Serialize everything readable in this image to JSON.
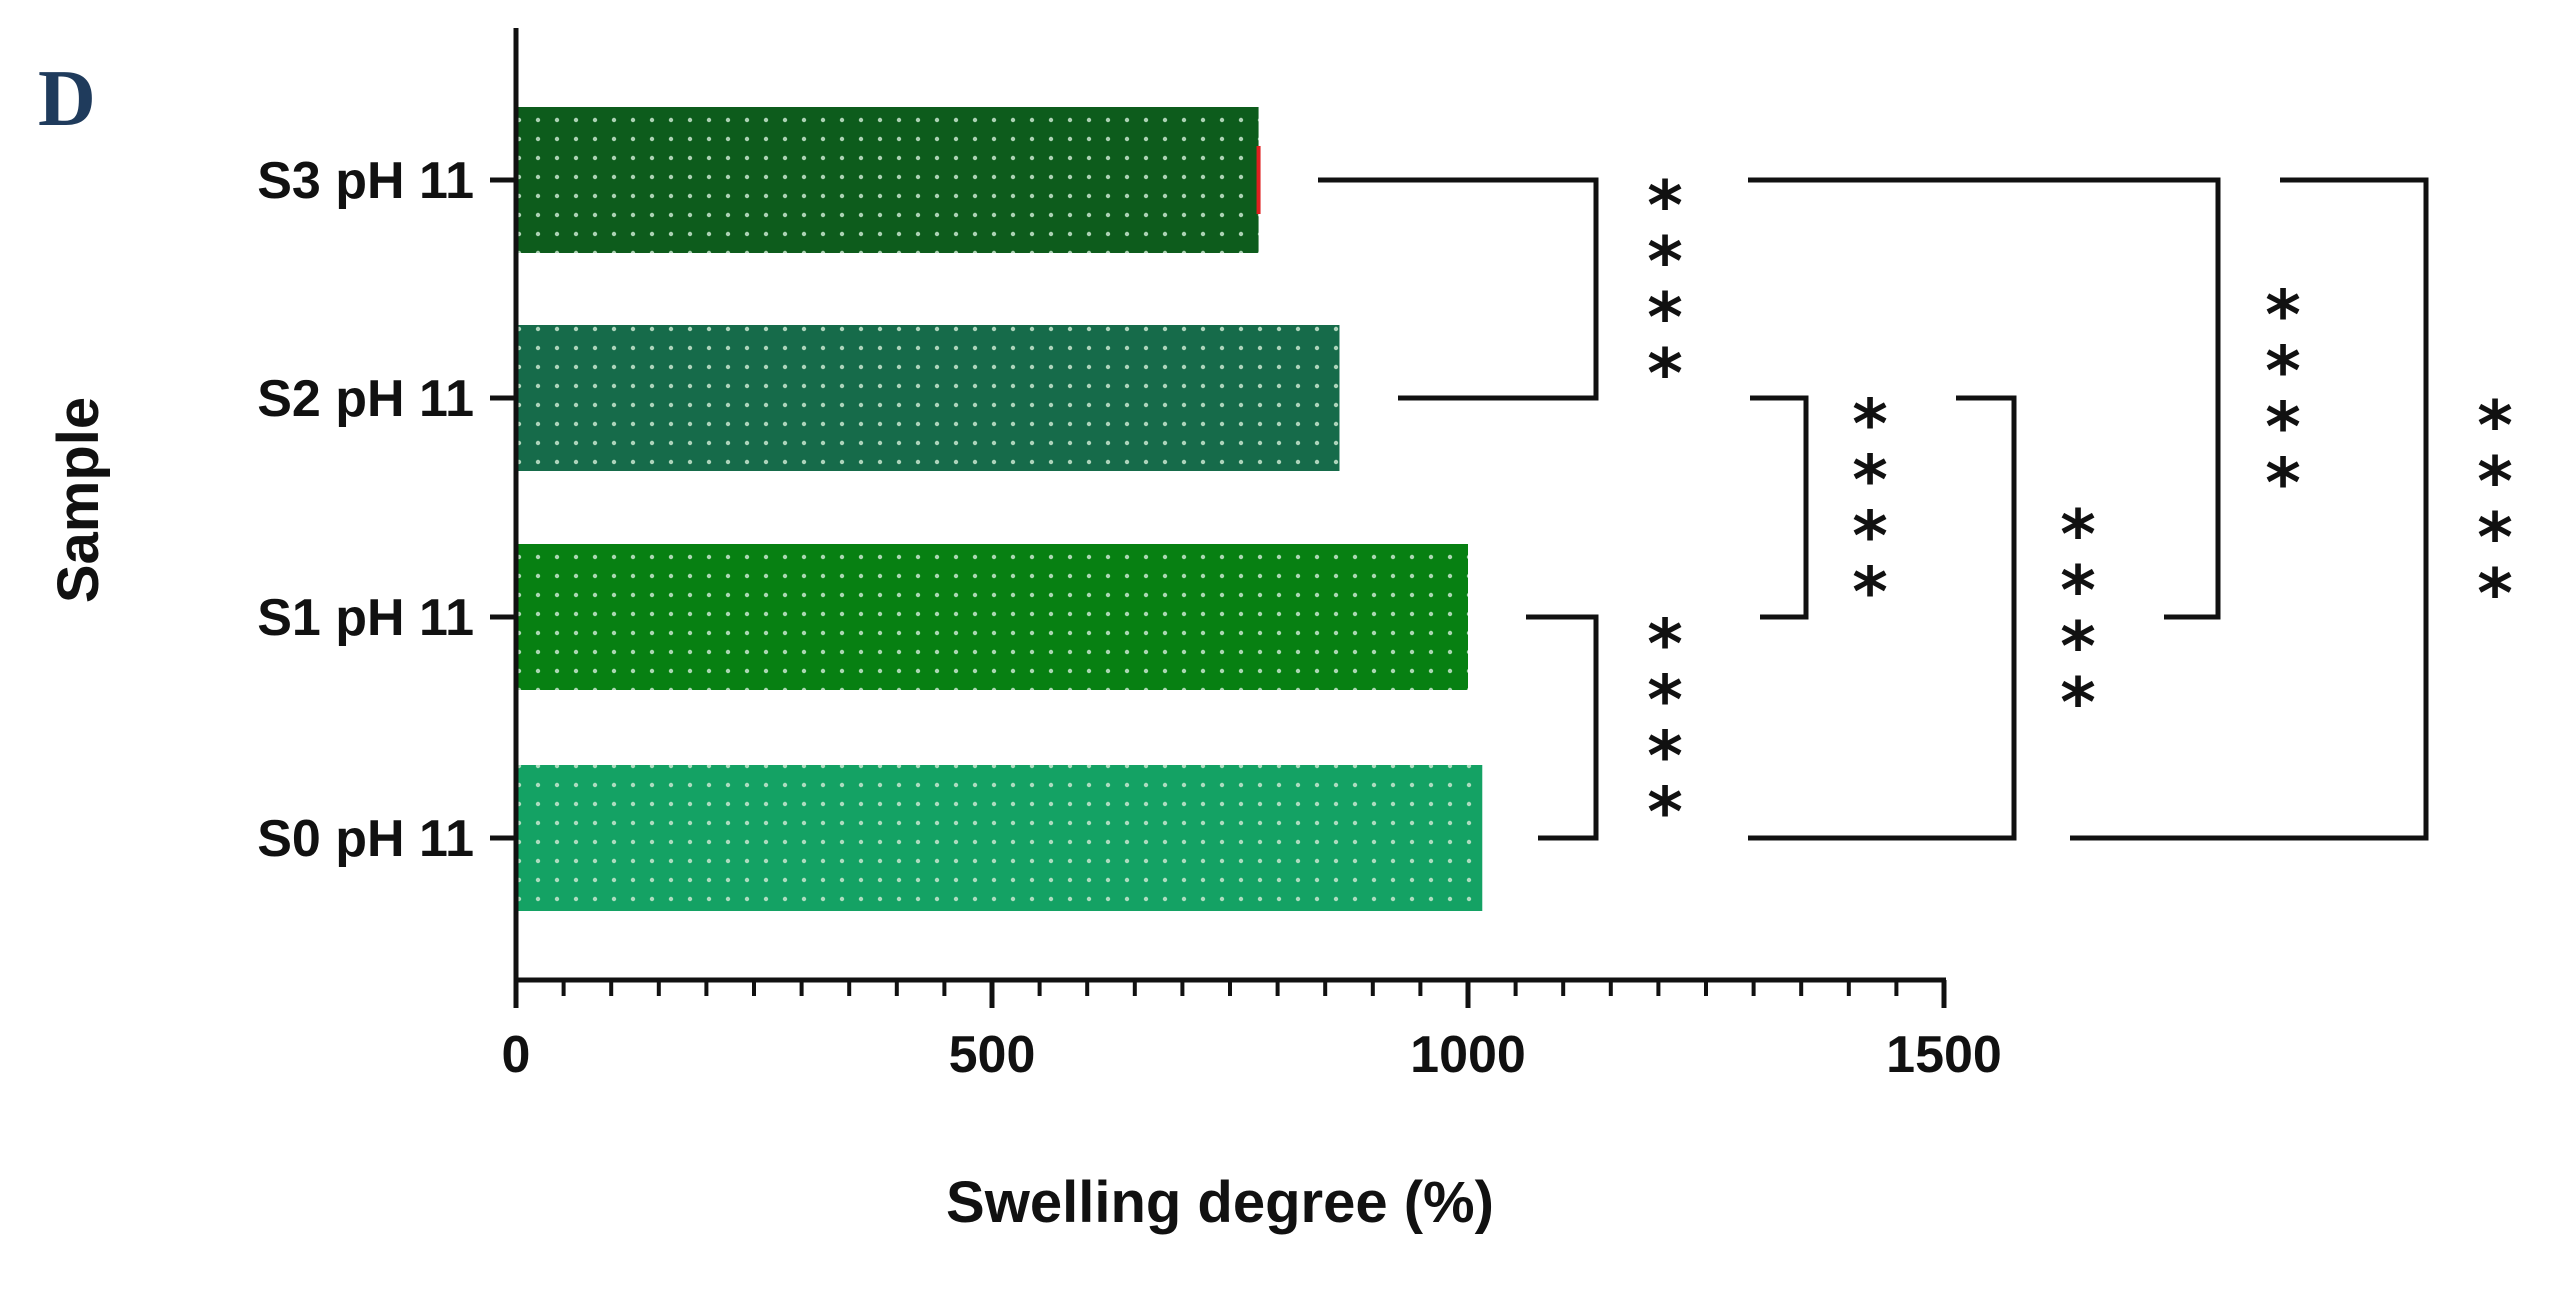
{
  "panel_label": "D",
  "chart_data": {
    "type": "bar",
    "orientation": "horizontal",
    "xlabel": "Swelling degree (%)",
    "ylabel": "Sample",
    "xlim": [
      0,
      1500
    ],
    "xticks": [
      0,
      500,
      1000,
      1500
    ],
    "xtick_labels": [
      "0",
      "500",
      "1000",
      "1500"
    ],
    "categories": [
      "S3 pH 11",
      "S2 pH 11",
      "S1 pH 11",
      "S0 pH 11"
    ],
    "values": [
      780,
      865,
      1000,
      1015
    ],
    "bar_colors": [
      "#0d5c1c",
      "#166b4a",
      "#078012",
      "#14a264"
    ],
    "error_bar_color": "#e02020",
    "error_bars": [
      3,
      0,
      0,
      0
    ],
    "grid": false,
    "significance": [
      {
        "between": [
          "S3 pH 11",
          "S2 pH 11"
        ],
        "label": "****"
      },
      {
        "between": [
          "S1 pH 11",
          "S0 pH 11"
        ],
        "label": "****"
      },
      {
        "between": [
          "S2 pH 11",
          "S1 pH 11"
        ],
        "label": "****"
      },
      {
        "between": [
          "S3 pH 11",
          "S1 pH 11"
        ],
        "label": "****"
      },
      {
        "between": [
          "S2 pH 11",
          "S0 pH 11"
        ],
        "label": "****"
      },
      {
        "between": [
          "S3 pH 11",
          "S0 pH 11"
        ],
        "label": "****"
      }
    ]
  }
}
